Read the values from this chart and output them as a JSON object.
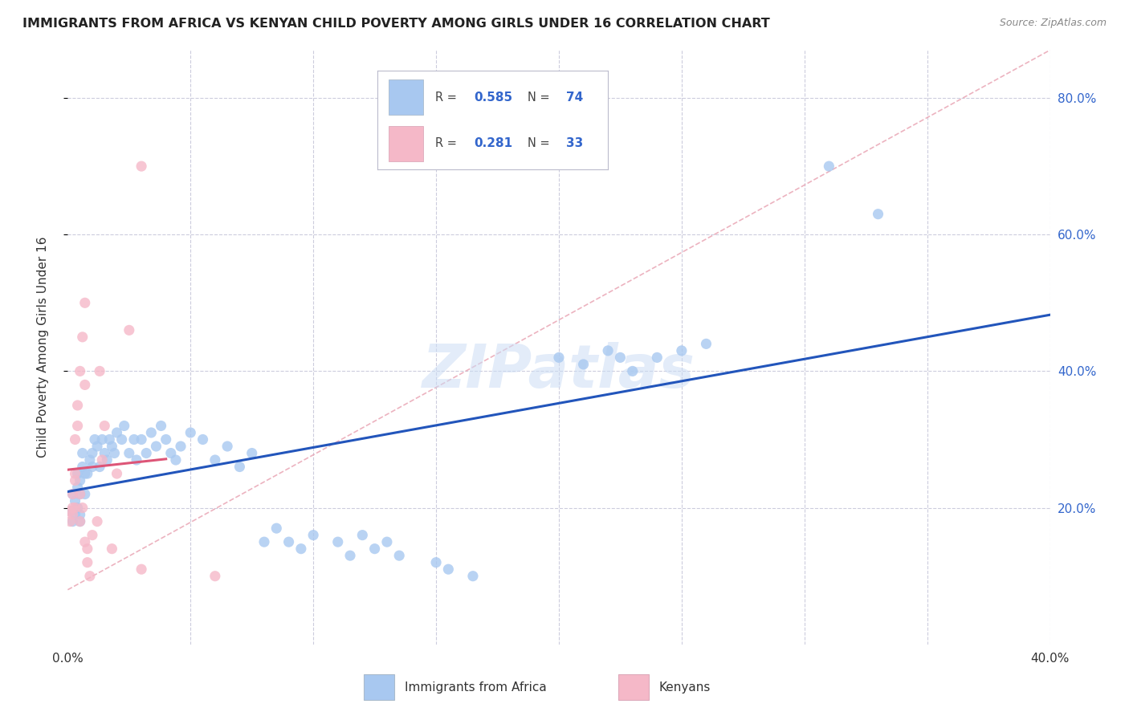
{
  "title": "IMMIGRANTS FROM AFRICA VS KENYAN CHILD POVERTY AMONG GIRLS UNDER 16 CORRELATION CHART",
  "source": "Source: ZipAtlas.com",
  "ylabel": "Child Poverty Among Girls Under 16",
  "xmin": 0.0,
  "xmax": 0.4,
  "ymin": 0.0,
  "ymax": 0.87,
  "yticks": [
    0.2,
    0.4,
    0.6,
    0.8
  ],
  "ytick_labels": [
    "20.0%",
    "40.0%",
    "60.0%",
    "80.0%"
  ],
  "legend_r1": "0.585",
  "legend_n1": "74",
  "legend_r2": "0.281",
  "legend_n2": "33",
  "blue_color": "#a8c8f0",
  "pink_color": "#f5b8c8",
  "line_blue": "#2255bb",
  "line_pink": "#dd5577",
  "watermark": "ZIPatlas",
  "blue_scatter": [
    [
      0.001,
      0.195
    ],
    [
      0.002,
      0.18
    ],
    [
      0.002,
      0.22
    ],
    [
      0.003,
      0.21
    ],
    [
      0.003,
      0.19
    ],
    [
      0.004,
      0.25
    ],
    [
      0.004,
      0.23
    ],
    [
      0.004,
      0.2
    ],
    [
      0.005,
      0.18
    ],
    [
      0.005,
      0.22
    ],
    [
      0.005,
      0.24
    ],
    [
      0.005,
      0.19
    ],
    [
      0.006,
      0.28
    ],
    [
      0.006,
      0.26
    ],
    [
      0.007,
      0.25
    ],
    [
      0.007,
      0.22
    ],
    [
      0.008,
      0.25
    ],
    [
      0.009,
      0.27
    ],
    [
      0.01,
      0.28
    ],
    [
      0.01,
      0.26
    ],
    [
      0.011,
      0.3
    ],
    [
      0.012,
      0.29
    ],
    [
      0.013,
      0.26
    ],
    [
      0.014,
      0.3
    ],
    [
      0.015,
      0.28
    ],
    [
      0.016,
      0.27
    ],
    [
      0.017,
      0.3
    ],
    [
      0.018,
      0.29
    ],
    [
      0.019,
      0.28
    ],
    [
      0.02,
      0.31
    ],
    [
      0.022,
      0.3
    ],
    [
      0.023,
      0.32
    ],
    [
      0.025,
      0.28
    ],
    [
      0.027,
      0.3
    ],
    [
      0.028,
      0.27
    ],
    [
      0.03,
      0.3
    ],
    [
      0.032,
      0.28
    ],
    [
      0.034,
      0.31
    ],
    [
      0.036,
      0.29
    ],
    [
      0.038,
      0.32
    ],
    [
      0.04,
      0.3
    ],
    [
      0.042,
      0.28
    ],
    [
      0.044,
      0.27
    ],
    [
      0.046,
      0.29
    ],
    [
      0.05,
      0.31
    ],
    [
      0.055,
      0.3
    ],
    [
      0.06,
      0.27
    ],
    [
      0.065,
      0.29
    ],
    [
      0.07,
      0.26
    ],
    [
      0.075,
      0.28
    ],
    [
      0.08,
      0.15
    ],
    [
      0.085,
      0.17
    ],
    [
      0.09,
      0.15
    ],
    [
      0.095,
      0.14
    ],
    [
      0.1,
      0.16
    ],
    [
      0.11,
      0.15
    ],
    [
      0.115,
      0.13
    ],
    [
      0.12,
      0.16
    ],
    [
      0.125,
      0.14
    ],
    [
      0.13,
      0.15
    ],
    [
      0.135,
      0.13
    ],
    [
      0.15,
      0.12
    ],
    [
      0.155,
      0.11
    ],
    [
      0.165,
      0.1
    ],
    [
      0.2,
      0.42
    ],
    [
      0.21,
      0.41
    ],
    [
      0.22,
      0.43
    ],
    [
      0.225,
      0.42
    ],
    [
      0.23,
      0.4
    ],
    [
      0.24,
      0.42
    ],
    [
      0.25,
      0.43
    ],
    [
      0.26,
      0.44
    ],
    [
      0.31,
      0.7
    ],
    [
      0.33,
      0.63
    ]
  ],
  "pink_scatter": [
    [
      0.001,
      0.195
    ],
    [
      0.001,
      0.18
    ],
    [
      0.002,
      0.2
    ],
    [
      0.002,
      0.19
    ],
    [
      0.002,
      0.22
    ],
    [
      0.003,
      0.25
    ],
    [
      0.003,
      0.24
    ],
    [
      0.003,
      0.2
    ],
    [
      0.003,
      0.3
    ],
    [
      0.004,
      0.32
    ],
    [
      0.004,
      0.35
    ],
    [
      0.005,
      0.4
    ],
    [
      0.005,
      0.22
    ],
    [
      0.005,
      0.18
    ],
    [
      0.006,
      0.45
    ],
    [
      0.006,
      0.2
    ],
    [
      0.007,
      0.5
    ],
    [
      0.007,
      0.38
    ],
    [
      0.007,
      0.15
    ],
    [
      0.008,
      0.12
    ],
    [
      0.008,
      0.14
    ],
    [
      0.009,
      0.1
    ],
    [
      0.01,
      0.16
    ],
    [
      0.012,
      0.18
    ],
    [
      0.013,
      0.4
    ],
    [
      0.014,
      0.27
    ],
    [
      0.015,
      0.32
    ],
    [
      0.018,
      0.14
    ],
    [
      0.02,
      0.25
    ],
    [
      0.025,
      0.46
    ],
    [
      0.03,
      0.11
    ],
    [
      0.03,
      0.7
    ],
    [
      0.06,
      0.1
    ]
  ]
}
